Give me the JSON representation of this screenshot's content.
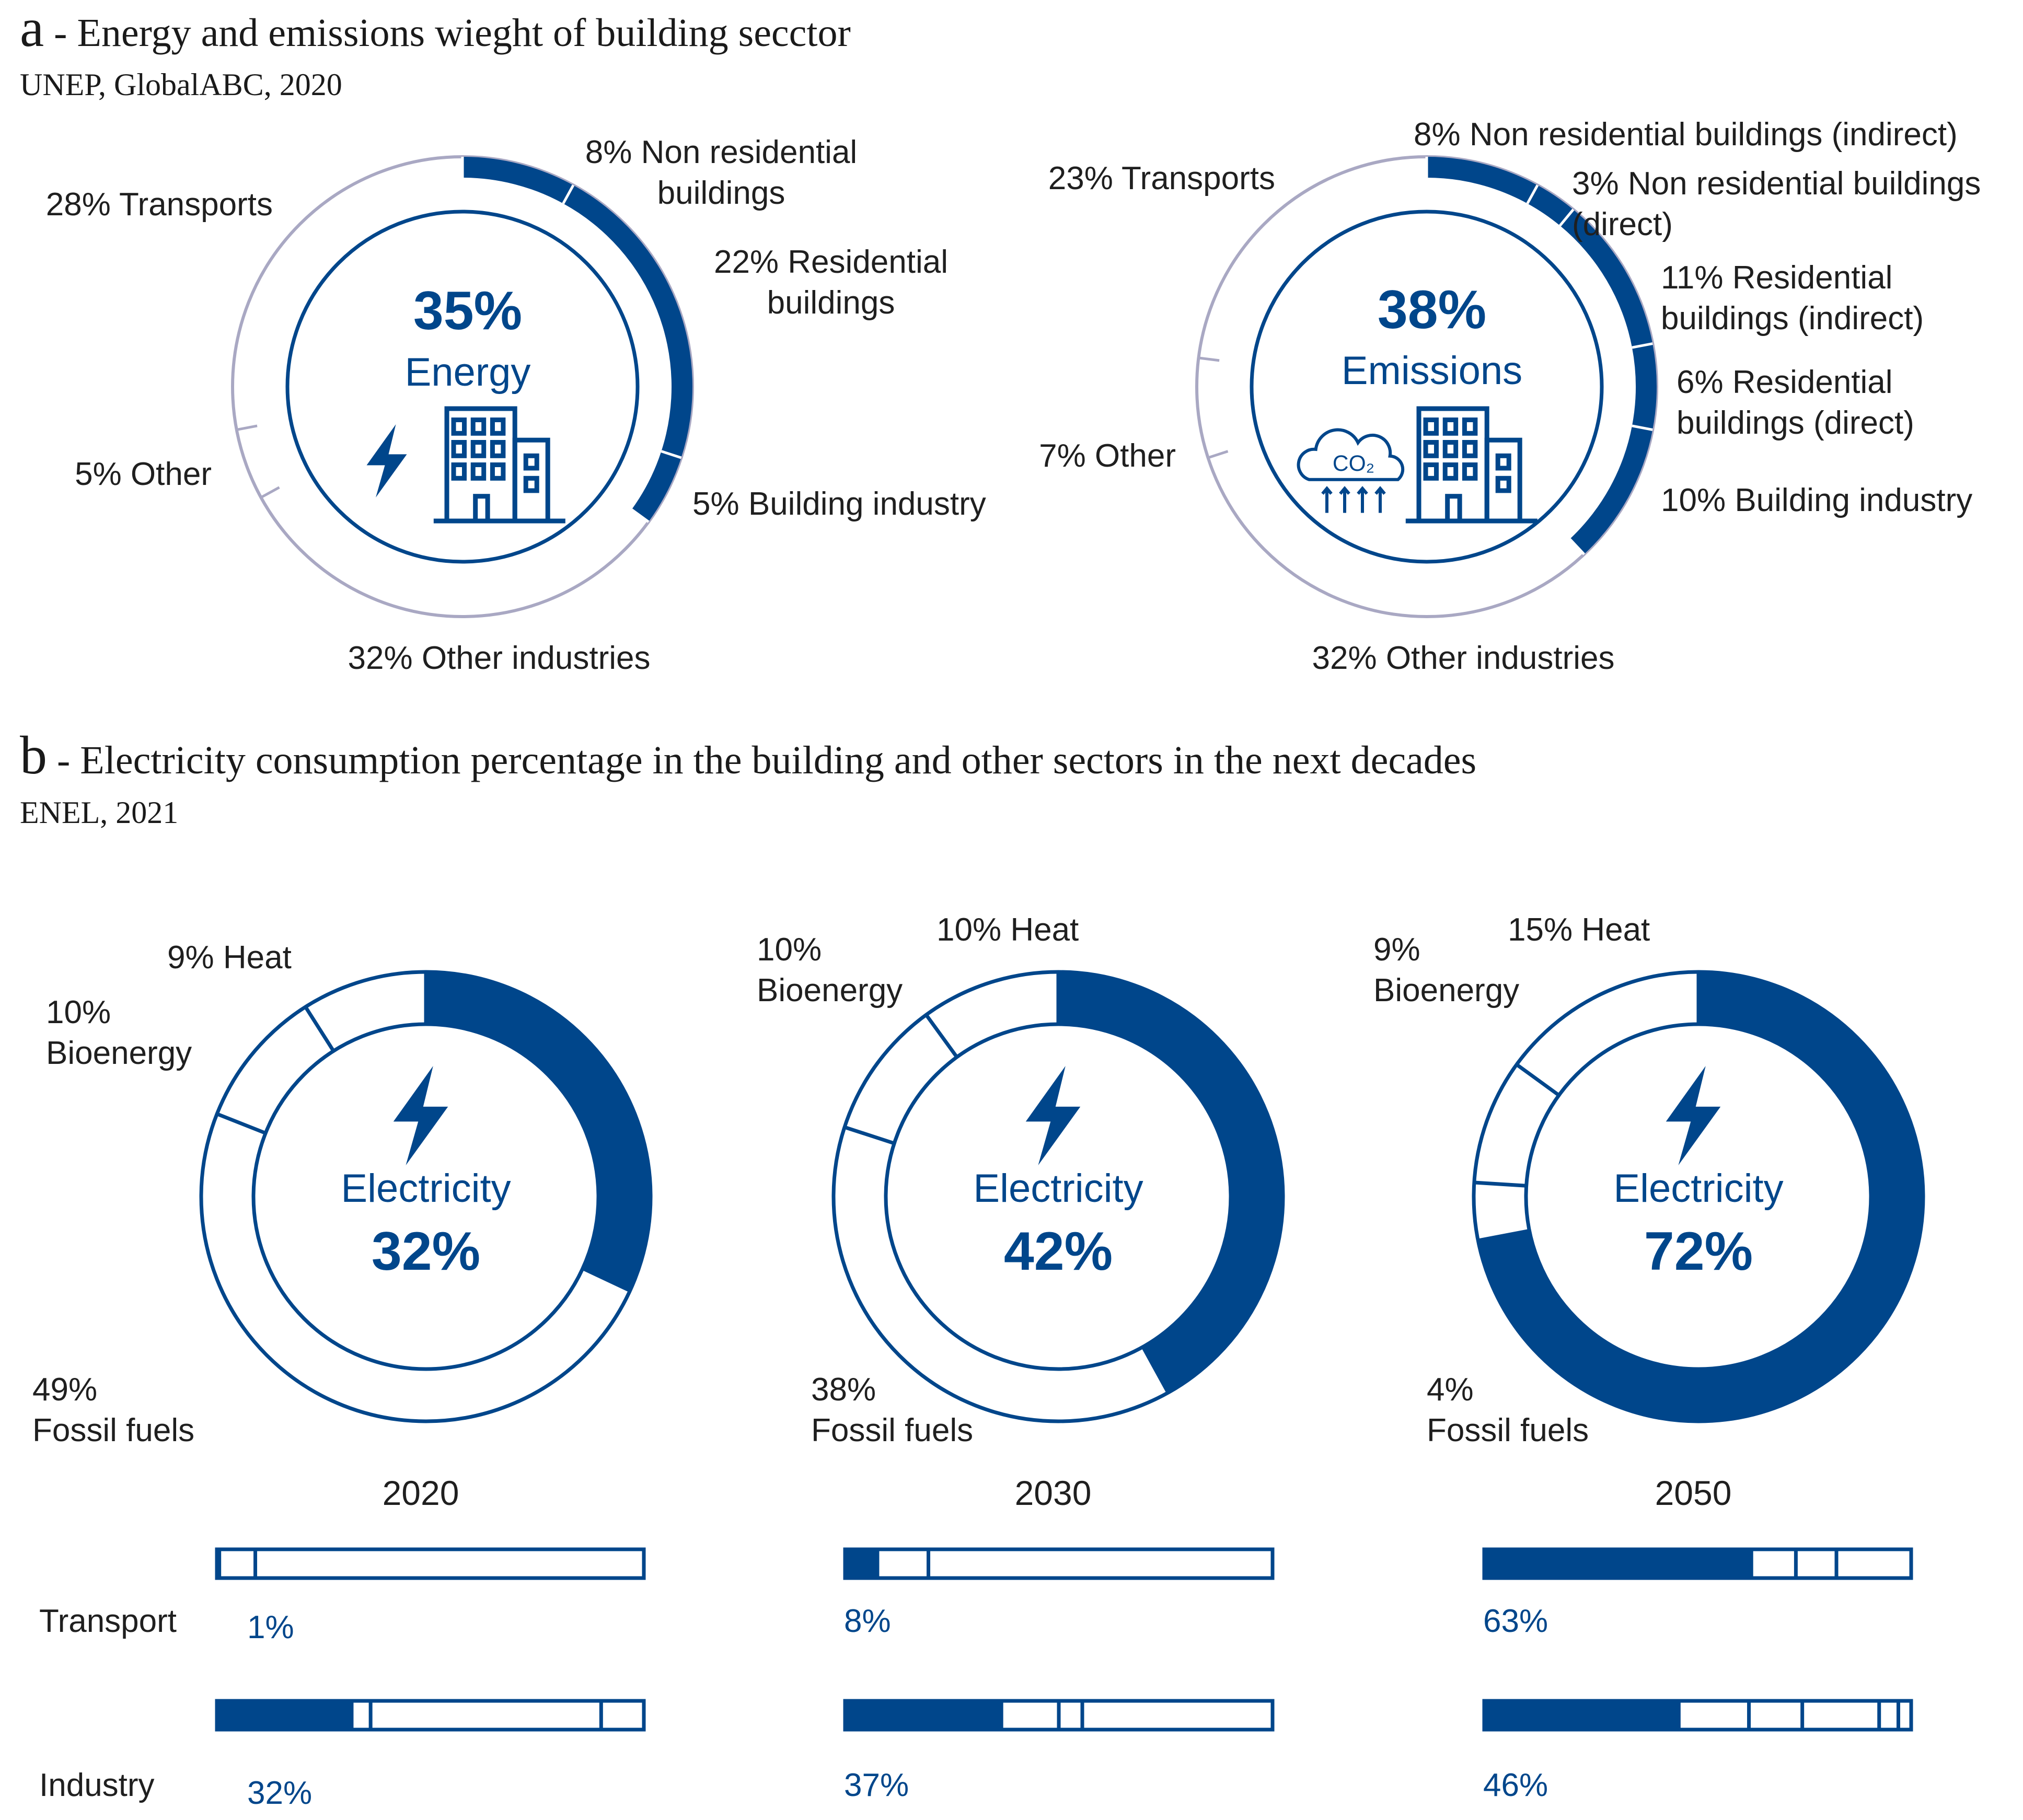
{
  "colors": {
    "accent": "#00468b",
    "rest_ring": "#a9a8c3",
    "text": "#1f1f1f"
  },
  "section_a": {
    "letter": "a",
    "title": " - Energy and emissions wieght of building secctor",
    "source": "UNEP, GlobalABC, 2020"
  },
  "section_b": {
    "letter": "b",
    "title": " - Electricity consumption percentage in the building and other sectors in the next decades",
    "source": "ENEL, 2021"
  },
  "chart_data": [
    {
      "type": "pie",
      "title": "",
      "center_value": "35%",
      "center_label": "Energy",
      "icons": [
        "lightning-icon",
        "building-icon"
      ],
      "slices": [
        {
          "label_lines": [
            "8% Non residential",
            "buildings"
          ],
          "value": 8,
          "highlight": true
        },
        {
          "label_lines": [
            "22% Residential",
            "buildings"
          ],
          "value": 22,
          "highlight": true
        },
        {
          "label_lines": [
            "5% Building industry"
          ],
          "value": 5,
          "highlight": true
        },
        {
          "label_lines": [
            "32% Other industries"
          ],
          "value": 32,
          "highlight": false
        },
        {
          "label_lines": [
            "5% Other"
          ],
          "value": 5,
          "highlight": false
        },
        {
          "label_lines": [
            "28%  Transports"
          ],
          "value": 28,
          "highlight": false
        }
      ]
    },
    {
      "type": "pie",
      "title": "",
      "center_value": "38%",
      "center_label": "Emissions",
      "icons": [
        "co2-cloud-icon",
        "building-icon"
      ],
      "co2_text": "CO₂",
      "slices": [
        {
          "label_lines": [
            "8% Non residential buildings (indirect)"
          ],
          "value": 8,
          "highlight": true
        },
        {
          "label_lines": [
            "3% Non residential buildings",
            "(direct)"
          ],
          "value": 3,
          "highlight": true
        },
        {
          "label_lines": [
            "11% Residential",
            "buildings (indirect)"
          ],
          "value": 11,
          "highlight": true
        },
        {
          "label_lines": [
            "6% Residential",
            "buildings (direct)"
          ],
          "value": 6,
          "highlight": true
        },
        {
          "label_lines": [
            "10% Building industry"
          ],
          "value": 10,
          "highlight": true
        },
        {
          "label_lines": [
            "32% Other industries"
          ],
          "value": 32,
          "highlight": false
        },
        {
          "label_lines": [
            "7% Other"
          ],
          "value": 7,
          "highlight": false
        },
        {
          "label_lines": [
            "23% Transports"
          ],
          "value": 23,
          "highlight": false
        }
      ]
    },
    {
      "type": "pie",
      "title": "",
      "year": "2020",
      "center_label": "Electricity",
      "center_value": "32%",
      "icons": [
        "lightning-icon"
      ],
      "slices": [
        {
          "name": "Electricity",
          "value": 32,
          "highlight": true
        },
        {
          "label_lines": [
            "49%",
            "Fossil fuels"
          ],
          "value": 49,
          "highlight": false
        },
        {
          "label_lines": [
            "10%",
            "Bioenergy"
          ],
          "value": 10,
          "highlight": false
        },
        {
          "label_lines": [
            "9% Heat"
          ],
          "value": 9,
          "highlight": false
        }
      ]
    },
    {
      "type": "pie",
      "title": "",
      "year": "2030",
      "center_label": "Electricity",
      "center_value": "42%",
      "icons": [
        "lightning-icon"
      ],
      "slices": [
        {
          "name": "Electricity",
          "value": 42,
          "highlight": true
        },
        {
          "label_lines": [
            "38%",
            "Fossil fuels"
          ],
          "value": 38,
          "highlight": false
        },
        {
          "label_lines": [
            "10%",
            "Bioenergy"
          ],
          "value": 10,
          "highlight": false
        },
        {
          "label_lines": [
            "10% Heat"
          ],
          "value": 10,
          "highlight": false
        }
      ]
    },
    {
      "type": "pie",
      "title": "",
      "year": "2050",
      "center_label": "Electricity",
      "center_value": "72%",
      "icons": [
        "lightning-icon"
      ],
      "slices": [
        {
          "name": "Electricity",
          "value": 72,
          "highlight": true
        },
        {
          "label_lines": [
            "4%",
            "Fossil fuels"
          ],
          "value": 4,
          "highlight": false
        },
        {
          "label_lines": [
            "9%",
            "Bioenergy"
          ],
          "value": 9,
          "highlight": false
        },
        {
          "label_lines": [
            "15% Heat"
          ],
          "value": 15,
          "highlight": false
        }
      ]
    },
    {
      "type": "bar",
      "title": "",
      "row_labels": [
        "Transport",
        "Industry"
      ],
      "groups": [
        {
          "year": "2020",
          "rows": [
            {
              "label": "Transport",
              "value_text": "1%",
              "value": 1,
              "dividers": [
                9
              ]
            },
            {
              "label": "Industry",
              "value_text": "32%",
              "value": 32,
              "dividers": [
                36,
                90
              ]
            }
          ]
        },
        {
          "year": "2030",
          "rows": [
            {
              "label": "Transport",
              "value_text": "8%",
              "value": 8,
              "dividers": [
                19.5
              ]
            },
            {
              "label": "Industry",
              "value_text": "37%",
              "value": 37,
              "dividers": [
                50,
                55.5
              ]
            }
          ]
        },
        {
          "year": "2050",
          "rows": [
            {
              "label": "Transport",
              "value_text": "63%",
              "value": 63,
              "dividers": [
                73,
                82.5
              ]
            },
            {
              "label": "Industry",
              "value_text": "46%",
              "value": 46,
              "dividers": [
                62,
                74.5,
                92.5,
                97
              ]
            }
          ]
        }
      ]
    }
  ]
}
